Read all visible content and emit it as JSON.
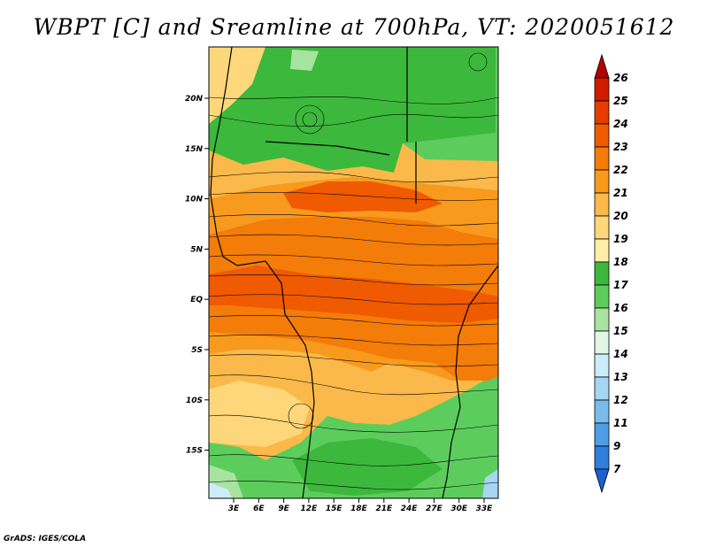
{
  "title": "WBPT [C] and Sreamline at 700hPa, VT: 2020051612",
  "credit": "GrADS: IGES/COLA",
  "map": {
    "variable": "WBPT [C]",
    "overlay": "Sreamline",
    "level": "700hPa",
    "valid_time": "2020051612",
    "lat_labels": [
      "20N",
      "15N",
      "10N",
      "5N",
      "EQ",
      "5S",
      "10S",
      "15S"
    ],
    "lon_labels": [
      "3E",
      "6E",
      "9E",
      "12E",
      "15E",
      "18E",
      "21E",
      "24E",
      "27E",
      "30E",
      "33E"
    ]
  },
  "colorbar": {
    "labels": [
      "26",
      "25",
      "24",
      "23",
      "22",
      "21",
      "20",
      "19",
      "18",
      "17",
      "16",
      "15",
      "14",
      "13",
      "12",
      "11",
      "9",
      "7"
    ],
    "colors": [
      "#b30000",
      "#d21c00",
      "#e63c00",
      "#f05a00",
      "#f47c08",
      "#f79a1e",
      "#fab94a",
      "#fdd77a",
      "#fdefa8",
      "#3cb83c",
      "#5ccd5c",
      "#a8e4a0",
      "#e3f6e3",
      "#ccecfa",
      "#a6d6f2",
      "#78bced",
      "#4c9fe6",
      "#2f7fdd",
      "#1c5fd0"
    ]
  }
}
